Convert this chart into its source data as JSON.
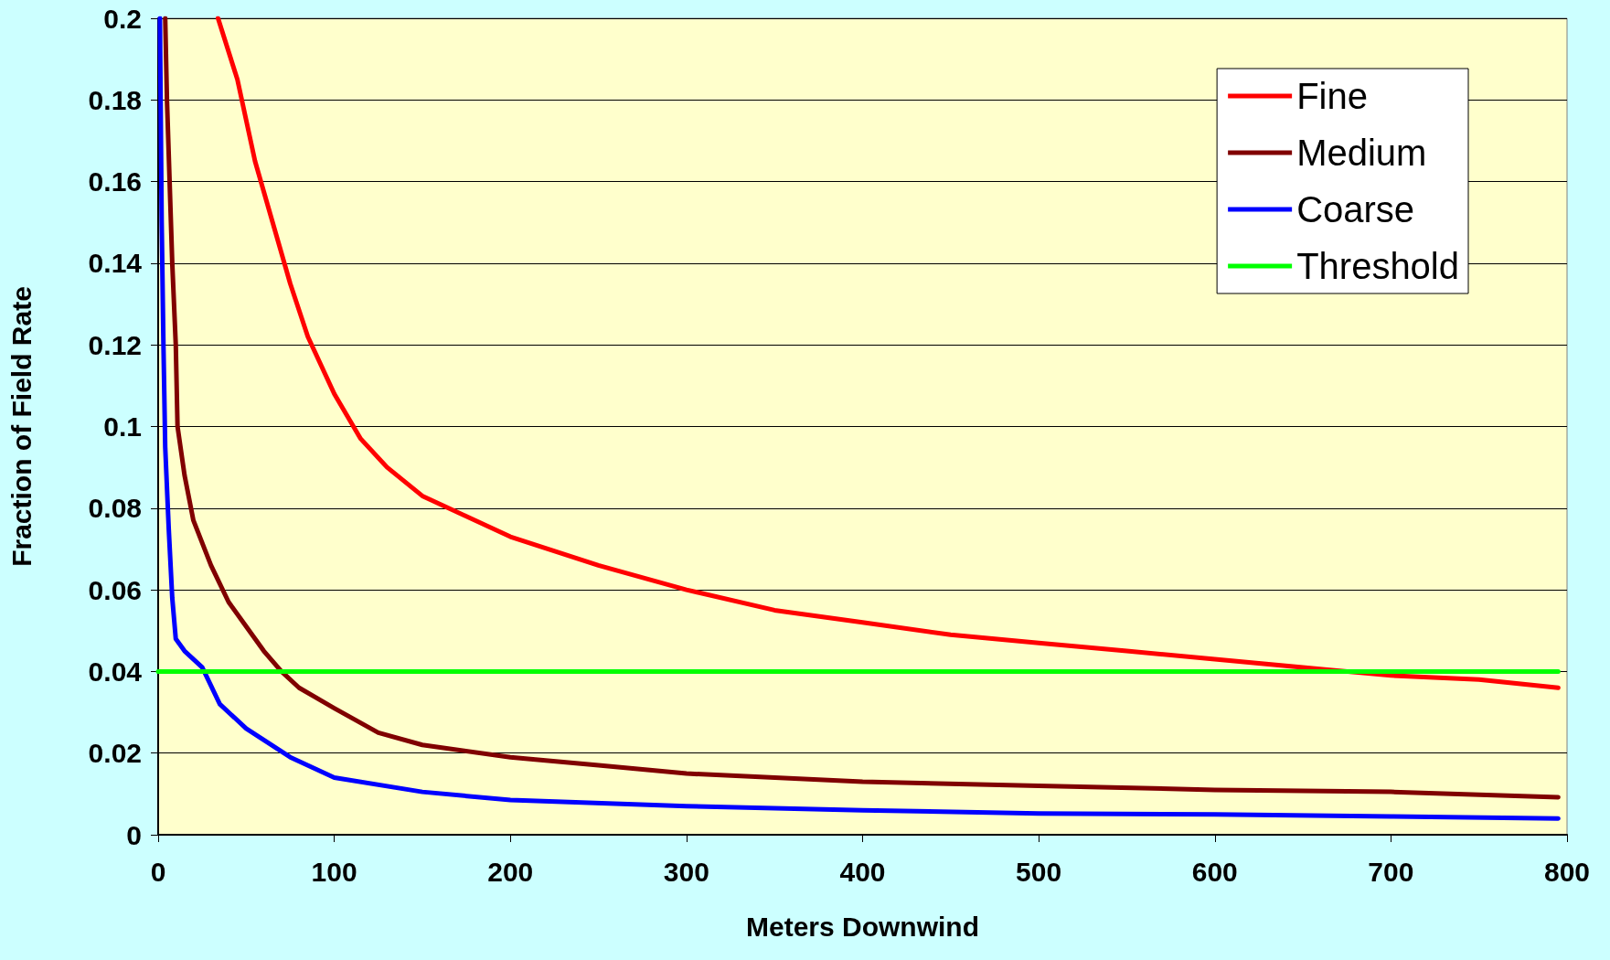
{
  "chart_data": {
    "type": "line",
    "xlabel": "Meters Downwind",
    "ylabel": "Fraction of Field Rate",
    "xlim": [
      0,
      800
    ],
    "xticks": [
      0,
      100,
      200,
      300,
      400,
      500,
      600,
      700,
      800
    ],
    "ylim": [
      0,
      0.2
    ],
    "yticks": [
      0,
      0.02,
      0.04,
      0.06,
      0.08,
      0.1,
      0.12,
      0.14,
      0.16,
      0.18,
      0.2
    ],
    "grid": "y",
    "legend": "top right",
    "marker": "none",
    "line_style": "solid",
    "series": [
      {
        "name": "Fine",
        "color": "#ff0000",
        "x": [
          34,
          45,
          55,
          65,
          75,
          85,
          100,
          115,
          130,
          150,
          175,
          200,
          250,
          300,
          350,
          400,
          450,
          500,
          550,
          600,
          650,
          700,
          750,
          795
        ],
        "values": [
          0.2,
          0.185,
          0.165,
          0.15,
          0.135,
          0.122,
          0.108,
          0.097,
          0.09,
          0.083,
          0.078,
          0.073,
          0.066,
          0.06,
          0.055,
          0.052,
          0.049,
          0.047,
          0.045,
          0.043,
          0.041,
          0.039,
          0.038,
          0.036
        ]
      },
      {
        "name": "Medium",
        "color": "#800000",
        "x": [
          4,
          5,
          8,
          10,
          11,
          15,
          20,
          30,
          40,
          50,
          60,
          70,
          80,
          100,
          125,
          150,
          200,
          250,
          300,
          400,
          500,
          600,
          700,
          795
        ],
        "values": [
          0.2,
          0.18,
          0.14,
          0.12,
          0.1,
          0.088,
          0.077,
          0.066,
          0.057,
          0.051,
          0.045,
          0.04,
          0.036,
          0.031,
          0.025,
          0.022,
          0.019,
          0.017,
          0.015,
          0.013,
          0.012,
          0.011,
          0.0105,
          0.0092
        ]
      },
      {
        "name": "Coarse",
        "color": "#0000ff",
        "x": [
          1,
          2,
          3,
          4,
          6,
          8,
          10,
          15,
          25,
          35,
          50,
          75,
          100,
          150,
          200,
          300,
          400,
          500,
          600,
          700,
          795
        ],
        "values": [
          0.2,
          0.15,
          0.12,
          0.095,
          0.075,
          0.058,
          0.048,
          0.045,
          0.041,
          0.032,
          0.026,
          0.019,
          0.014,
          0.0105,
          0.0085,
          0.007,
          0.006,
          0.0052,
          0.005,
          0.0045,
          0.004
        ]
      },
      {
        "name": "Threshold",
        "color": "#00ff00",
        "x": [
          0,
          795
        ],
        "values": [
          0.04,
          0.04
        ]
      }
    ]
  }
}
